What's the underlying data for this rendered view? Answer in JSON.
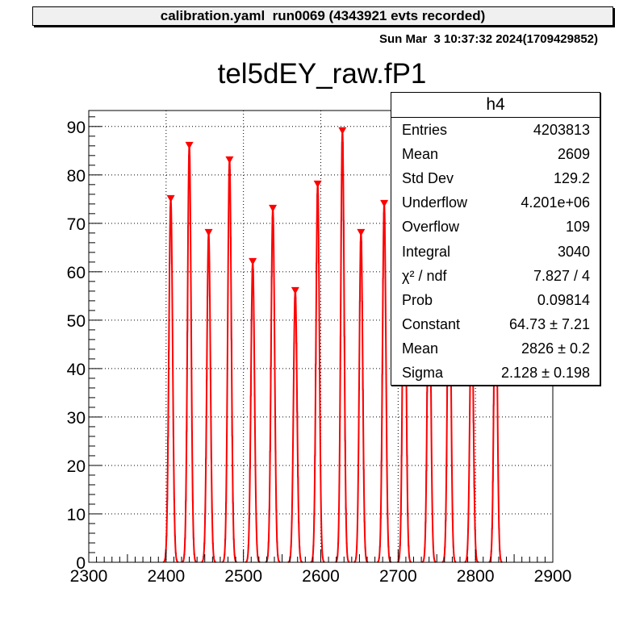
{
  "header": {
    "banner": "calibration.yaml  run0069 (4343921 evts recorded)",
    "datestamp": "Sun Mar  3 10:37:32 2024(1709429852)"
  },
  "stats": {
    "title": "h4",
    "rows": [
      {
        "label": "Entries",
        "value": "4203813"
      },
      {
        "label": "Mean",
        "value": "2609"
      },
      {
        "label": "Std Dev",
        "value": "129.2"
      },
      {
        "label": "Underflow",
        "value": "4.201e+06"
      },
      {
        "label": "Overflow",
        "value": "109"
      },
      {
        "label": "Integral",
        "value": "3040"
      },
      {
        "label": "χ² / ndf",
        "value": "7.827 / 4"
      },
      {
        "label": "Prob",
        "value": "0.09814"
      },
      {
        "label": "Constant",
        "value": "64.73 ± 7.21"
      },
      {
        "label": "Mean",
        "value": "2826 ± 0.2"
      },
      {
        "label": "Sigma",
        "value": "2.128 ± 0.198"
      }
    ]
  },
  "chart_data": {
    "type": "bar",
    "title": "tel5dEY_raw.fP1",
    "xlim": [
      2300,
      2900
    ],
    "ylim": [
      0,
      93.3
    ],
    "xticks": [
      "2300",
      "2400",
      "2500",
      "2600",
      "2700",
      "2800",
      "2900"
    ],
    "yticks": [
      "0",
      "10",
      "20",
      "30",
      "40",
      "50",
      "60",
      "70",
      "80",
      "90"
    ],
    "grid": true,
    "colors": {
      "histogram": "#000080",
      "fit": "#ff0000",
      "marker": "#ff0000"
    },
    "peaks": [
      {
        "x": 2406,
        "y": 75,
        "sigma": 2.4
      },
      {
        "x": 2430,
        "y": 86,
        "sigma": 2.3
      },
      {
        "x": 2455,
        "y": 68,
        "sigma": 2.3
      },
      {
        "x": 2482,
        "y": 83,
        "sigma": 2.3
      },
      {
        "x": 2512,
        "y": 62,
        "sigma": 2.3
      },
      {
        "x": 2538,
        "y": 73,
        "sigma": 2.3
      },
      {
        "x": 2567,
        "y": 56,
        "sigma": 2.3
      },
      {
        "x": 2596,
        "y": 78,
        "sigma": 2.2
      },
      {
        "x": 2628,
        "y": 89,
        "sigma": 2.2
      },
      {
        "x": 2652,
        "y": 68,
        "sigma": 2.2
      },
      {
        "x": 2682,
        "y": 74,
        "sigma": 2.2
      },
      {
        "x": 2708,
        "y": 78,
        "sigma": 2.2
      },
      {
        "x": 2740,
        "y": 67,
        "sigma": 2.2
      },
      {
        "x": 2766,
        "y": 70,
        "sigma": 2.2
      },
      {
        "x": 2795,
        "y": 55,
        "sigma": 2.2
      },
      {
        "x": 2826,
        "y": 64.7,
        "sigma": 2.13
      }
    ]
  }
}
